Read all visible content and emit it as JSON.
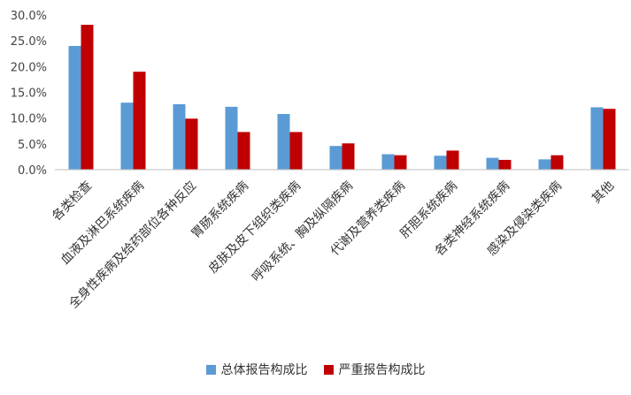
{
  "chart_data": {
    "type": "bar",
    "title": "",
    "xlabel": "",
    "ylabel": "",
    "ylim": [
      0,
      30
    ],
    "yticks": [
      "0.0%",
      "5.0%",
      "10.0%",
      "15.0%",
      "20.0%",
      "25.0%",
      "30.0%"
    ],
    "ytick_values": [
      0,
      5,
      10,
      15,
      20,
      25,
      30
    ],
    "categories": [
      "各类检查",
      "血液及淋巴系统疾病",
      "全身性疾病及给药部位各种反应",
      "胃肠系统疾病",
      "皮肤及皮下组织类疾病",
      "呼吸系统、胸及纵隔疾病",
      "代谢及营养类疾病",
      "肝胆系统疾病",
      "各类神经系统疾病",
      "感染及侵染类疾病",
      "其他"
    ],
    "series": [
      {
        "name": "总体报告构成比",
        "color": "#5B9BD5",
        "values": [
          24.0,
          13.0,
          12.7,
          12.2,
          10.8,
          4.6,
          3.0,
          2.7,
          2.3,
          2.0,
          12.1
        ]
      },
      {
        "name": "严重报告构成比",
        "color": "#C00000",
        "values": [
          28.1,
          19.0,
          9.9,
          7.3,
          7.3,
          5.1,
          2.8,
          3.7,
          1.9,
          2.8,
          11.8
        ]
      }
    ],
    "grid": false,
    "legend_position": "bottom"
  }
}
